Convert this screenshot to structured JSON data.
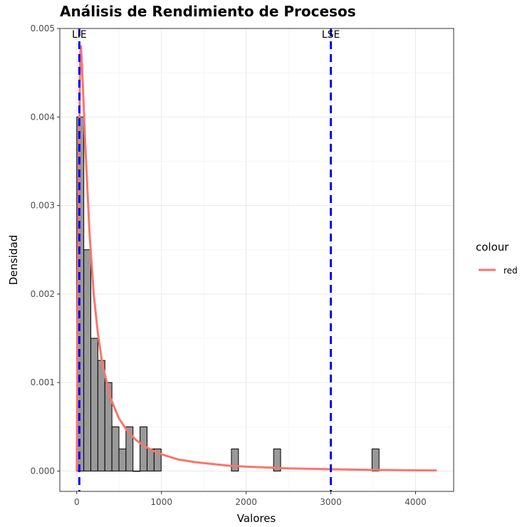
{
  "chart_data": {
    "type": "bar",
    "title": "Análisis de Rendimiento de Procesos",
    "xlabel": "Valores",
    "ylabel": "Densidad",
    "xlim": [
      -200,
      4450
    ],
    "ylim": [
      -0.00023,
      0.005
    ],
    "x_ticks": [
      0,
      1000,
      2000,
      3000,
      4000
    ],
    "x_tick_labels": [
      "0",
      "1000",
      "2000",
      "3000",
      "4000"
    ],
    "y_ticks": [
      0.0,
      0.001,
      0.002,
      0.003,
      0.004,
      0.005
    ],
    "y_tick_labels": [
      "0.000",
      "0.001",
      "0.002",
      "0.003",
      "0.004",
      "0.005"
    ],
    "grid": true,
    "histogram": {
      "bin_width": 83,
      "bins": [
        {
          "start": 0,
          "density": 0.004
        },
        {
          "start": 83,
          "density": 0.0025
        },
        {
          "start": 166,
          "density": 0.0015
        },
        {
          "start": 249,
          "density": 0.00125
        },
        {
          "start": 332,
          "density": 0.001
        },
        {
          "start": 415,
          "density": 0.0005
        },
        {
          "start": 498,
          "density": 0.00025
        },
        {
          "start": 581,
          "density": 0.0005
        },
        {
          "start": 664,
          "density": 0.0
        },
        {
          "start": 747,
          "density": 0.0005
        },
        {
          "start": 830,
          "density": 0.00025
        },
        {
          "start": 913,
          "density": 0.00025
        },
        {
          "start": 1826,
          "density": 0.00025
        },
        {
          "start": 2324,
          "density": 0.00025
        },
        {
          "start": 3486,
          "density": 0.00025
        }
      ],
      "fill_color": "#999999",
      "stroke_color": "#000000"
    },
    "density_curve": {
      "name": "red",
      "color": "#f8766d",
      "points": [
        [
          0,
          0.0
        ],
        [
          15,
          0.0024
        ],
        [
          40,
          0.0047
        ],
        [
          50,
          0.0048
        ],
        [
          70,
          0.0044
        ],
        [
          100,
          0.0037
        ],
        [
          150,
          0.0027
        ],
        [
          200,
          0.002
        ],
        [
          250,
          0.00155
        ],
        [
          300,
          0.00122
        ],
        [
          400,
          0.00082
        ],
        [
          500,
          0.00059
        ],
        [
          600,
          0.00045
        ],
        [
          700,
          0.00035
        ],
        [
          800,
          0.00028
        ],
        [
          900,
          0.00023
        ],
        [
          1000,
          0.00019
        ],
        [
          1200,
          0.00013
        ],
        [
          1400,
          0.0001
        ],
        [
          1600,
          8e-05
        ],
        [
          1800,
          6e-05
        ],
        [
          2000,
          5e-05
        ],
        [
          2500,
          3e-05
        ],
        [
          3000,
          2e-05
        ],
        [
          3500,
          1.2e-05
        ],
        [
          4000,
          8e-06
        ],
        [
          4250,
          6e-06
        ]
      ]
    },
    "reference_lines": [
      {
        "label": "LIE",
        "x": 30,
        "color": "#0000ff"
      },
      {
        "label": "LSE",
        "x": 3000,
        "color": "#0000ff"
      }
    ],
    "legend": {
      "title": "colour",
      "position": "right",
      "entries": [
        {
          "label": "red",
          "color": "#f8766d"
        }
      ]
    }
  }
}
